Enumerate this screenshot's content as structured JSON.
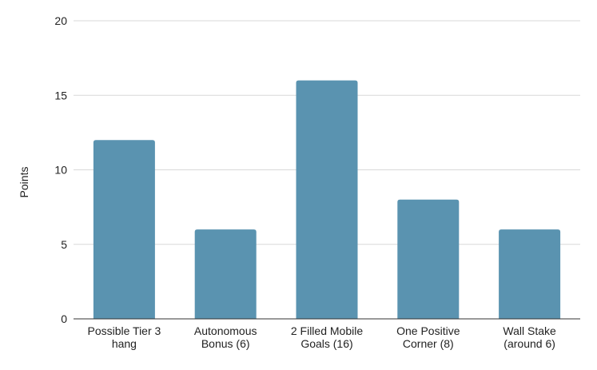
{
  "chart_data": {
    "type": "bar",
    "categories": [
      [
        "Possible Tier 3",
        "hang"
      ],
      [
        "Autonomous",
        "Bonus (6)"
      ],
      [
        "2 Filled Mobile",
        "Goals (16)"
      ],
      [
        "One Positive",
        "Corner (8)"
      ],
      [
        "Wall Stake",
        "(around 6)"
      ]
    ],
    "values": [
      12,
      6,
      16,
      8,
      6
    ],
    "ylabel": "Points",
    "xlabel": "",
    "title": "",
    "ylim": [
      0,
      20
    ],
    "yticks": [
      0,
      5,
      10,
      15,
      20
    ],
    "grid": true,
    "legend": "none",
    "bar_color": "#5a93b0",
    "grid_color": "#d9d9d9",
    "axis_color": "#333333",
    "text_color": "#222222"
  }
}
